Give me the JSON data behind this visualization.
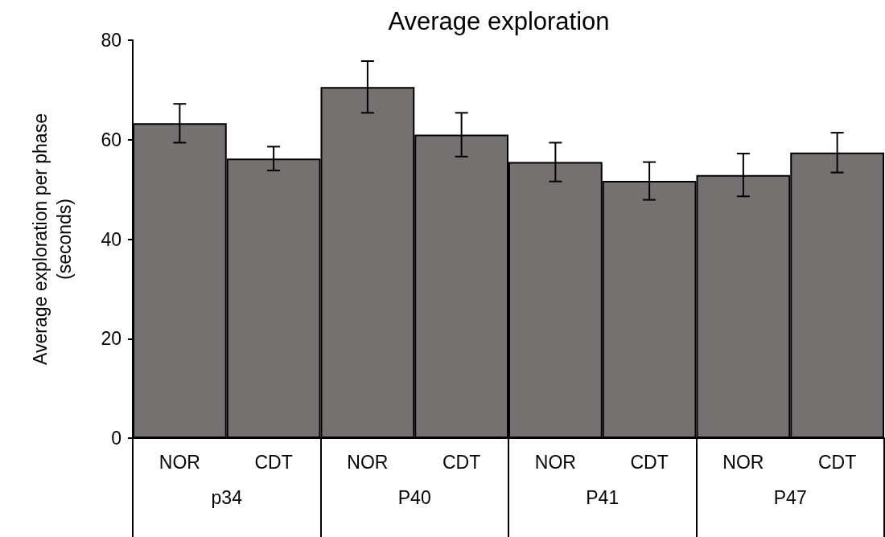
{
  "chart_data": {
    "type": "bar",
    "title": "Average exploration",
    "ylabel": "Average exploration per phase\n(seconds)",
    "categories": [
      "NOR",
      "CDT",
      "NOR",
      "CDT",
      "NOR",
      "CDT",
      "NOR",
      "CDT"
    ],
    "values": [
      63.3,
      56.2,
      70.6,
      61.0,
      55.5,
      51.7,
      52.9,
      57.4
    ],
    "errors": [
      3.9,
      2.4,
      5.2,
      4.4,
      3.9,
      3.8,
      4.3,
      4.0
    ],
    "color": "#767171",
    "annotations": [
      "p34",
      "P40",
      "P41",
      "P47"
    ],
    "ylim": [
      0,
      80
    ],
    "yticks": [
      0,
      20,
      40,
      60,
      80
    ],
    "grid": false
  }
}
